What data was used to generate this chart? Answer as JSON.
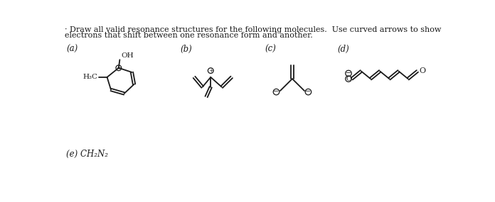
{
  "background_color": "#ffffff",
  "title_line1": "· Draw all valid resonance structures for the following molecules.  Use curved arrows to show",
  "title_line2": "electrons that shift between one resonance form and another.",
  "label_a": "(a)",
  "label_b": "(b)",
  "label_c": "(c)",
  "label_d": "(d)",
  "label_e": "(e) CH₂N₂",
  "title_fontsize": 8.0,
  "label_fontsize": 8.5,
  "line_color": "#1a1a1a",
  "line_width": 1.3
}
